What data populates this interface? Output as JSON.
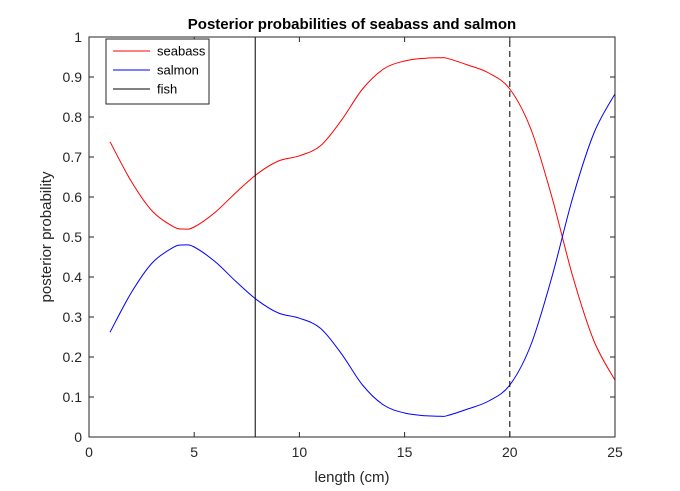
{
  "chart_data": {
    "type": "line",
    "title": "Posterior probabilities of seabass and salmon",
    "xlabel": "length (cm)",
    "ylabel": "posterior probability",
    "xlim": [
      0,
      25
    ],
    "ylim": [
      0,
      1
    ],
    "x_ticks": [
      "0",
      "5",
      "10",
      "15",
      "20",
      "25"
    ],
    "y_ticks": [
      "0",
      "0.1",
      "0.2",
      "0.3",
      "0.4",
      "0.5",
      "0.6",
      "0.7",
      "0.8",
      "0.9",
      "1"
    ],
    "grid": false,
    "legend_position": "top-left",
    "series": [
      {
        "name": "seabass",
        "color": "#ff0000",
        "x": [
          1,
          2,
          3,
          4,
          4.5,
          5,
          6,
          7,
          8,
          9,
          10,
          11,
          12,
          13,
          14,
          15,
          16,
          16.7,
          17,
          18,
          19,
          20,
          21,
          22,
          23,
          24,
          25
        ],
        "y": [
          0.738,
          0.64,
          0.565,
          0.526,
          0.52,
          0.525,
          0.562,
          0.612,
          0.658,
          0.69,
          0.703,
          0.728,
          0.792,
          0.87,
          0.92,
          0.94,
          0.947,
          0.948,
          0.947,
          0.93,
          0.91,
          0.87,
          0.77,
          0.6,
          0.4,
          0.24,
          0.142
        ]
      },
      {
        "name": "salmon",
        "color": "#0000ff",
        "x": [
          1,
          2,
          3,
          4,
          4.5,
          5,
          6,
          7,
          8,
          9,
          10,
          11,
          12,
          13,
          14,
          15,
          16,
          16.7,
          17,
          18,
          19,
          20,
          21,
          22,
          23,
          24,
          25
        ],
        "y": [
          0.262,
          0.36,
          0.435,
          0.474,
          0.48,
          0.475,
          0.438,
          0.388,
          0.342,
          0.31,
          0.297,
          0.272,
          0.208,
          0.13,
          0.08,
          0.06,
          0.053,
          0.052,
          0.053,
          0.07,
          0.09,
          0.13,
          0.23,
          0.4,
          0.6,
          0.76,
          0.858
        ]
      },
      {
        "name": "fish",
        "color": "#000000",
        "style": "solid",
        "x": [
          7.9,
          7.9
        ],
        "y": [
          0,
          1
        ]
      }
    ],
    "threshold_line": {
      "color": "#000000",
      "style": "dashed",
      "x": [
        20,
        20
      ],
      "y": [
        0,
        1
      ]
    }
  }
}
